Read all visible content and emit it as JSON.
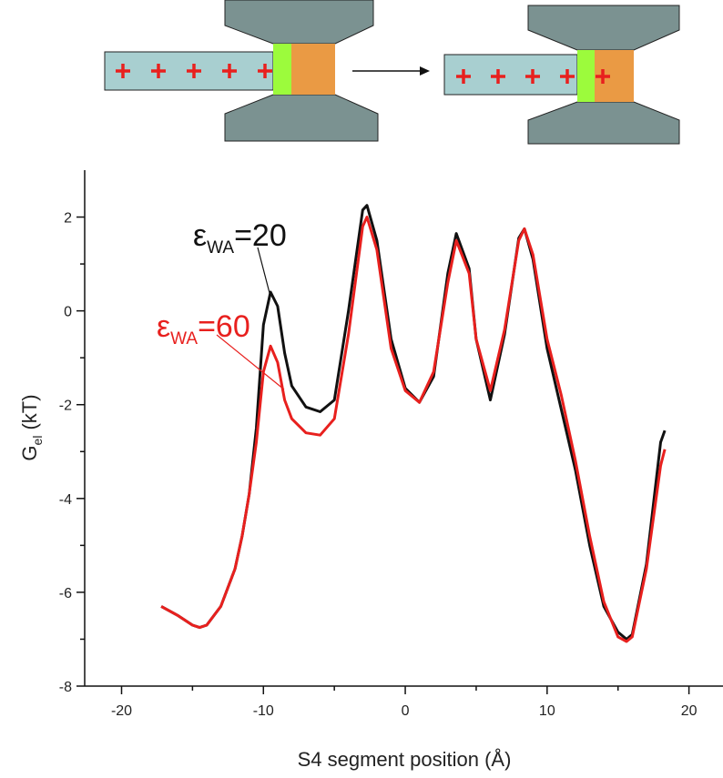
{
  "chart_data": {
    "type": "line",
    "x_label": "S4 segment position (Å)",
    "y_label": "G",
    "y_label_sub": "el",
    "y_label_suffix": "(kT)",
    "x": [
      -17.2,
      -16,
      -15,
      -14.5,
      -14,
      -13,
      -12,
      -11.5,
      -11,
      -10.5,
      -10,
      -9.5,
      -9,
      -8.5,
      -8,
      -7,
      -6,
      -5,
      -4,
      -3,
      -2.7,
      -2,
      -1,
      0,
      1,
      2,
      3,
      3.6,
      4.5,
      5,
      6,
      7,
      8,
      8.4,
      9,
      10,
      11,
      12,
      13,
      14,
      15,
      15.6,
      16,
      17,
      18,
      18.3
    ],
    "series": [
      {
        "name": "=20",
        "name_symbol": "ε",
        "name_sub": "WA",
        "color": "#111111",
        "values": [
          -6.3,
          -6.5,
          -6.7,
          -6.75,
          -6.7,
          -6.3,
          -5.5,
          -4.8,
          -3.9,
          -2.5,
          -0.3,
          0.4,
          0.1,
          -0.9,
          -1.6,
          -2.05,
          -2.15,
          -1.9,
          0.0,
          2.15,
          2.25,
          1.5,
          -0.6,
          -1.65,
          -1.95,
          -1.4,
          0.8,
          1.65,
          0.9,
          -0.6,
          -1.9,
          -0.5,
          1.55,
          1.75,
          1.1,
          -0.8,
          -2.1,
          -3.4,
          -5.0,
          -6.3,
          -6.85,
          -7.0,
          -6.9,
          -5.4,
          -2.8,
          -2.55
        ]
      },
      {
        "name": "=60",
        "name_symbol": "ε",
        "name_sub": "WA",
        "color": "#e8201e",
        "values": [
          -6.3,
          -6.5,
          -6.7,
          -6.75,
          -6.7,
          -6.3,
          -5.5,
          -4.8,
          -3.9,
          -2.8,
          -1.3,
          -0.75,
          -1.1,
          -1.9,
          -2.3,
          -2.6,
          -2.65,
          -2.3,
          -0.5,
          1.8,
          2.0,
          1.3,
          -0.8,
          -1.7,
          -1.95,
          -1.3,
          0.6,
          1.5,
          0.8,
          -0.6,
          -1.7,
          -0.4,
          1.5,
          1.75,
          1.2,
          -0.6,
          -1.8,
          -3.2,
          -4.8,
          -6.2,
          -6.95,
          -7.05,
          -6.95,
          -5.5,
          -3.3,
          -2.95
        ]
      }
    ],
    "xlim": [
      -22.6,
      22.4
    ],
    "xticks": [
      -20,
      -10,
      0,
      10,
      20
    ],
    "x_minor_ticks": [
      -15,
      -5,
      5,
      15
    ],
    "ylim": [
      -8,
      3
    ],
    "yticks": [
      -8,
      -6,
      -4,
      -2,
      0,
      2
    ],
    "y_minor_ticks": [
      -7,
      -5,
      -3,
      -1,
      1
    ]
  }
}
